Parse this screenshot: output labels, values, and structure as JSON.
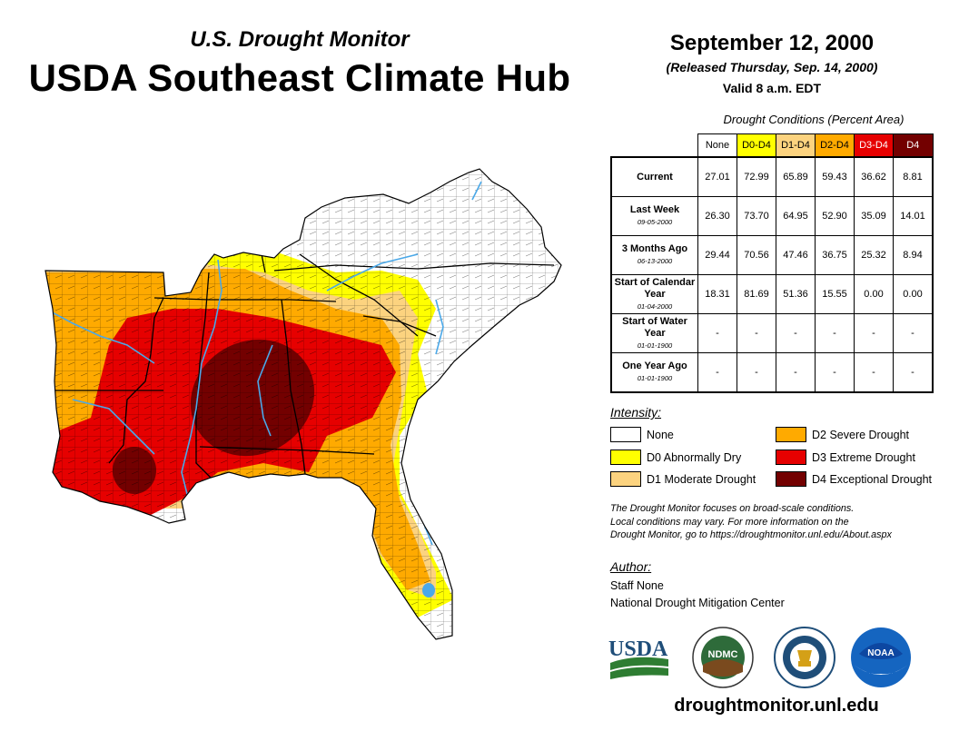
{
  "header": {
    "title_line1": "U.S. Drought Monitor",
    "title_line2": "USDA Southeast Climate Hub",
    "date": "September 12, 2000",
    "released": "(Released Thursday, Sep. 14, 2000)",
    "valid": "Valid 8 a.m. EDT"
  },
  "conditions": {
    "title": "Drought Conditions (Percent Area)",
    "columns": [
      "None",
      "D0-D4",
      "D1-D4",
      "D2-D4",
      "D3-D4",
      "D4"
    ],
    "rows": [
      {
        "label": "Current",
        "date": "",
        "values": [
          "27.01",
          "72.99",
          "65.89",
          "59.43",
          "36.62",
          "8.81"
        ]
      },
      {
        "label": "Last Week",
        "date": "09-05-2000",
        "values": [
          "26.30",
          "73.70",
          "64.95",
          "52.90",
          "35.09",
          "14.01"
        ]
      },
      {
        "label": "3 Months Ago",
        "date": "06-13-2000",
        "values": [
          "29.44",
          "70.56",
          "47.46",
          "36.75",
          "25.32",
          "8.94"
        ]
      },
      {
        "label": "Start of Calendar Year",
        "date": "01-04-2000",
        "values": [
          "18.31",
          "81.69",
          "51.36",
          "15.55",
          "0.00",
          "0.00"
        ]
      },
      {
        "label": "Start of Water Year",
        "date": "01-01-1900",
        "values": [
          "-",
          "-",
          "-",
          "-",
          "-",
          "-"
        ]
      },
      {
        "label": "One Year Ago",
        "date": "01-01-1900",
        "values": [
          "-",
          "-",
          "-",
          "-",
          "-",
          "-"
        ]
      }
    ]
  },
  "legend": {
    "title": "Intensity:",
    "items": [
      {
        "label": "None",
        "color": "#ffffff"
      },
      {
        "label": "D0 Abnormally Dry",
        "color": "#ffff00"
      },
      {
        "label": "D1 Moderate Drought",
        "color": "#fcd37f"
      },
      {
        "label": "D2 Severe Drought",
        "color": "#ffaa00"
      },
      {
        "label": "D3 Extreme Drought",
        "color": "#e60000"
      },
      {
        "label": "D4 Exceptional Drought",
        "color": "#730000"
      }
    ]
  },
  "note": {
    "line1": "The Drought Monitor focuses on broad-scale conditions.",
    "line2": "Local conditions may vary. For more information on the",
    "line3": "Drought Monitor, go to https://droughtmonitor.unl.edu/About.aspx"
  },
  "author": {
    "title": "Author:",
    "name": "Staff None",
    "org": "National Drought Mitigation Center"
  },
  "logos": {
    "usda": "USDA",
    "ndmc": "NDMC",
    "noaa": "NOAA"
  },
  "footer": {
    "url": "droughtmonitor.unl.edu"
  },
  "colors": {
    "none": "#ffffff",
    "d0": "#ffff00",
    "d1": "#fcd37f",
    "d2": "#ffaa00",
    "d3": "#e60000",
    "d4": "#730000",
    "water": "#4aa8e8"
  }
}
